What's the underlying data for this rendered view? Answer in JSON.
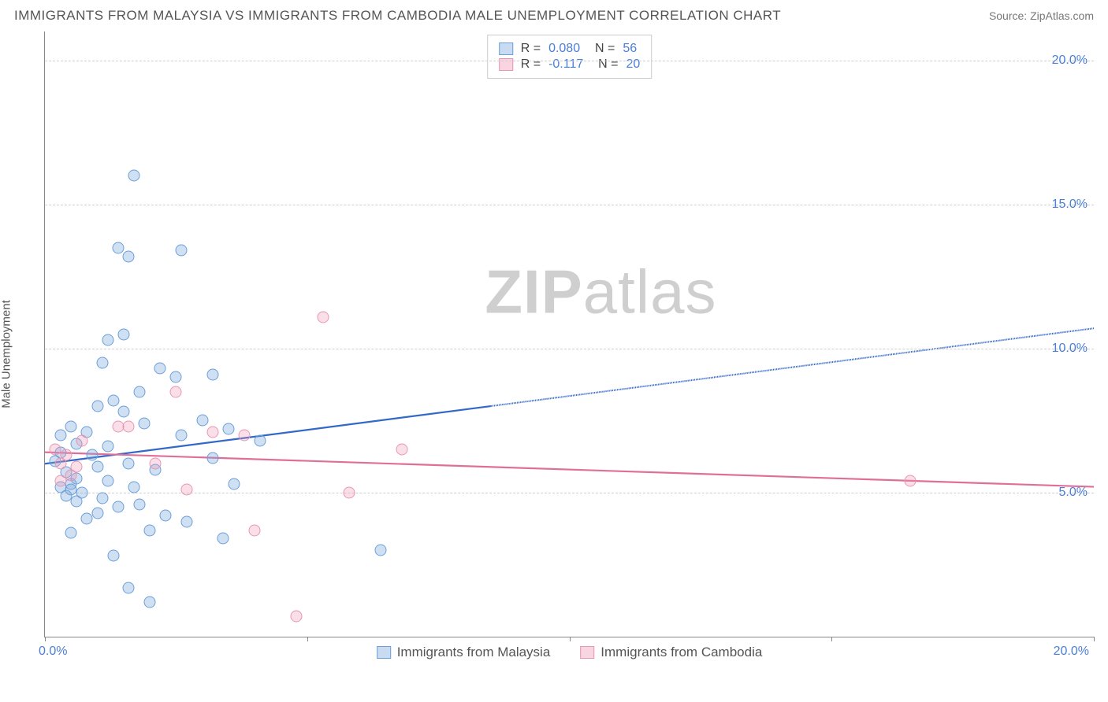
{
  "title": "IMMIGRANTS FROM MALAYSIA VS IMMIGRANTS FROM CAMBODIA MALE UNEMPLOYMENT CORRELATION CHART",
  "source": "Source: ZipAtlas.com",
  "ylabel": "Male Unemployment",
  "watermark_zip": "ZIP",
  "watermark_atlas": "atlas",
  "chart": {
    "type": "scatter",
    "xlim": [
      0,
      20
    ],
    "ylim": [
      0,
      21
    ],
    "y_gridlines": [
      5,
      10,
      15,
      20
    ],
    "y_tick_labels": [
      "5.0%",
      "10.0%",
      "15.0%",
      "20.0%"
    ],
    "x_tick_label_min": "0.0%",
    "x_tick_label_max": "20.0%",
    "x_tick_positions": [
      0,
      5,
      10,
      15,
      20
    ],
    "background_color": "#ffffff",
    "grid_color": "#cfcfcf",
    "axis_color": "#888888",
    "tick_label_color": "#4a7fd8",
    "series": [
      {
        "name": "Immigrants from Malaysia",
        "color_fill": "rgba(120,165,220,0.35)",
        "color_stroke": "#6a9fd8",
        "trend_color": "#3268c8",
        "R": "0.080",
        "N": "56",
        "trend": {
          "x1": 0,
          "y1": 6.0,
          "x2_solid": 8.5,
          "y2_solid": 8.0,
          "x2_dash": 20,
          "y2_dash": 10.7
        },
        "points": [
          [
            0.2,
            6.1
          ],
          [
            0.3,
            6.4
          ],
          [
            0.4,
            5.7
          ],
          [
            0.5,
            5.3
          ],
          [
            0.6,
            5.5
          ],
          [
            0.3,
            5.2
          ],
          [
            0.4,
            4.9
          ],
          [
            0.5,
            5.1
          ],
          [
            0.6,
            4.7
          ],
          [
            0.7,
            5.0
          ],
          [
            0.3,
            7.0
          ],
          [
            0.5,
            7.3
          ],
          [
            0.6,
            6.7
          ],
          [
            0.8,
            7.1
          ],
          [
            0.9,
            6.3
          ],
          [
            1.0,
            5.9
          ],
          [
            1.1,
            4.8
          ],
          [
            1.2,
            5.4
          ],
          [
            1.2,
            6.6
          ],
          [
            1.3,
            8.2
          ],
          [
            1.4,
            4.5
          ],
          [
            1.5,
            7.8
          ],
          [
            1.6,
            6.0
          ],
          [
            1.7,
            5.2
          ],
          [
            1.8,
            4.6
          ],
          [
            1.9,
            7.4
          ],
          [
            2.0,
            3.7
          ],
          [
            2.1,
            5.8
          ],
          [
            2.2,
            9.3
          ],
          [
            2.3,
            4.2
          ],
          [
            2.5,
            9.0
          ],
          [
            2.6,
            7.0
          ],
          [
            2.7,
            4.0
          ],
          [
            1.0,
            8.0
          ],
          [
            1.1,
            9.5
          ],
          [
            1.2,
            10.3
          ],
          [
            1.5,
            10.5
          ],
          [
            1.6,
            13.2
          ],
          [
            1.4,
            13.5
          ],
          [
            1.7,
            16.0
          ],
          [
            2.6,
            13.4
          ],
          [
            3.2,
            9.1
          ],
          [
            3.4,
            3.4
          ],
          [
            3.5,
            7.2
          ],
          [
            3.6,
            5.3
          ],
          [
            1.3,
            2.8
          ],
          [
            1.6,
            1.7
          ],
          [
            2.0,
            1.2
          ],
          [
            3.0,
            7.5
          ],
          [
            3.2,
            6.2
          ],
          [
            4.1,
            6.8
          ],
          [
            6.4,
            3.0
          ],
          [
            1.0,
            4.3
          ],
          [
            0.8,
            4.1
          ],
          [
            0.5,
            3.6
          ],
          [
            1.8,
            8.5
          ]
        ]
      },
      {
        "name": "Immigrants from Cambodia",
        "color_fill": "rgba(240,150,180,0.30)",
        "color_stroke": "#e696b5",
        "trend_color": "#e06f98",
        "R": "-0.117",
        "N": "20",
        "trend": {
          "x1": 0,
          "y1": 6.4,
          "x2_solid": 20,
          "y2_solid": 5.2,
          "x2_dash": 20,
          "y2_dash": 5.2
        },
        "points": [
          [
            0.2,
            6.5
          ],
          [
            0.3,
            6.0
          ],
          [
            0.4,
            6.3
          ],
          [
            0.5,
            5.6
          ],
          [
            0.6,
            5.9
          ],
          [
            0.7,
            6.8
          ],
          [
            0.3,
            5.4
          ],
          [
            1.4,
            7.3
          ],
          [
            1.6,
            7.3
          ],
          [
            2.1,
            6.0
          ],
          [
            2.5,
            8.5
          ],
          [
            2.7,
            5.1
          ],
          [
            3.2,
            7.1
          ],
          [
            3.8,
            7.0
          ],
          [
            4.0,
            3.7
          ],
          [
            4.8,
            0.7
          ],
          [
            5.3,
            11.1
          ],
          [
            5.8,
            5.0
          ],
          [
            6.8,
            6.5
          ],
          [
            16.5,
            5.4
          ]
        ]
      }
    ],
    "legend": [
      {
        "label": "Immigrants from Malaysia",
        "swatch": "blue"
      },
      {
        "label": "Immigrants from Cambodia",
        "swatch": "pink"
      }
    ]
  }
}
